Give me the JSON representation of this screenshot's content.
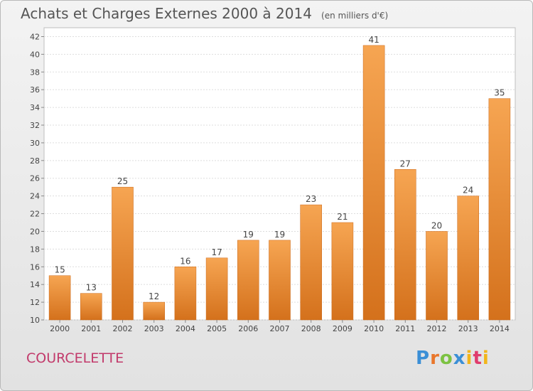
{
  "chart_data": {
    "type": "bar",
    "title": "Achats et Charges Externes 2000 à 2014",
    "unit_label": "(en milliers d'€)",
    "categories": [
      "2000",
      "2001",
      "2002",
      "2003",
      "2004",
      "2005",
      "2006",
      "2007",
      "2008",
      "2009",
      "2010",
      "2011",
      "2012",
      "2013",
      "2014"
    ],
    "values": [
      15,
      13,
      25,
      12,
      16,
      17,
      19,
      19,
      23,
      21,
      41,
      27,
      20,
      24,
      35
    ],
    "ylim": [
      10,
      43
    ],
    "yticks": [
      10,
      12,
      14,
      16,
      18,
      20,
      22,
      24,
      26,
      28,
      30,
      32,
      34,
      36,
      38,
      40,
      42
    ],
    "grid": true,
    "bar_color": "#f0943a",
    "xlabel": "",
    "ylabel": ""
  },
  "commune": "COURCELETTE",
  "logo": "Proxiti"
}
